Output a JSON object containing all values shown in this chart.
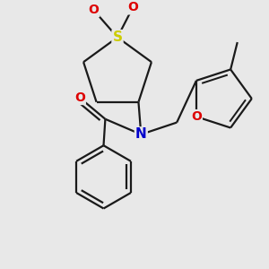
{
  "bg_color": "#e8e8e8",
  "atom_colors": {
    "C": "#1a1a1a",
    "N": "#0000cc",
    "O": "#dd0000",
    "S": "#cccc00"
  },
  "bond_color": "#1a1a1a",
  "bond_width": 1.6,
  "figsize": [
    3.0,
    3.0
  ],
  "dpi": 100,
  "xlim": [
    -1.3,
    1.8
  ],
  "ylim": [
    -1.4,
    1.6
  ]
}
